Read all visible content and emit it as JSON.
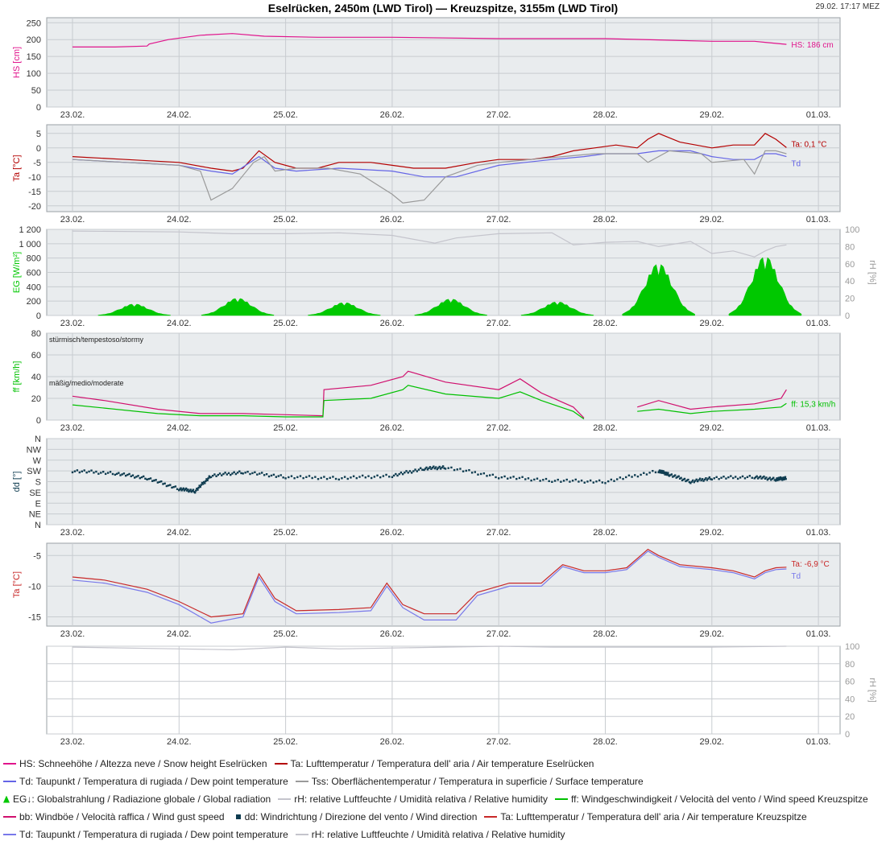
{
  "header": {
    "title": "Eselrücken, 2450m (LWD Tirol) — Kreuzspitze, 3155m (LWD Tirol)",
    "timestamp": "29.02. 17:17 MEZ"
  },
  "colors": {
    "hs": "#e0148c",
    "ta": "#b40000",
    "td": "#6464e6",
    "tss": "#9a9a9a",
    "eg": "#00c800",
    "rh": "#c4c4cc",
    "ff": "#00c000",
    "bb": "#d0106e",
    "dd": "#0f3c50",
    "ta2": "#c82828",
    "td2": "#7878ea",
    "panel": "#e9ecee",
    "grid": "#c8ccd0"
  },
  "chart_data": [
    {
      "id": "hs",
      "type": "line",
      "ylabel": "HS [cm]",
      "yticks": [
        "0",
        "50",
        "100",
        "150",
        "200",
        "250"
      ],
      "ylim": [
        0,
        265
      ],
      "x_tick_labels": [
        "23.02.",
        "24.02.",
        "25.02.",
        "26.02.",
        "27.02.",
        "28.02.",
        "29.02.",
        "01.03."
      ],
      "annotation": "HS: 186 cm",
      "series": [
        {
          "key": "hs",
          "x": [
            0.0,
            0.4,
            0.7,
            0.72,
            0.9,
            1.2,
            1.5,
            1.8,
            2.3,
            3.0,
            4.0,
            5.0,
            5.5,
            6.0,
            6.4,
            6.5,
            6.7
          ],
          "y": [
            178,
            178,
            181,
            187,
            200,
            213,
            218,
            210,
            207,
            207,
            203,
            203,
            199,
            195,
            195,
            192,
            186
          ]
        }
      ]
    },
    {
      "id": "ta",
      "type": "line",
      "ylabel": "Ta [°C]",
      "yticks": [
        "-20",
        "-15",
        "-10",
        "-5",
        "0",
        "5"
      ],
      "ylim": [
        -22,
        8
      ],
      "x_tick_labels": [
        "23.02.",
        "24.02.",
        "25.02.",
        "26.02.",
        "27.02.",
        "28.02.",
        "29.02.",
        "01.03."
      ],
      "annotations": [
        "Ta: 0,1 °C",
        "Td"
      ],
      "series": [
        {
          "key": "ta",
          "x": [
            0,
            0.5,
            1.0,
            1.3,
            1.5,
            1.6,
            1.75,
            1.9,
            2.1,
            2.3,
            2.5,
            2.8,
            3.0,
            3.2,
            3.5,
            3.8,
            4.0,
            4.3,
            4.5,
            4.7,
            4.9,
            5.1,
            5.3,
            5.4,
            5.5,
            5.7,
            6.0,
            6.2,
            6.4,
            6.5,
            6.6,
            6.7
          ],
          "y": [
            -3,
            -4,
            -5,
            -7,
            -8,
            -7,
            -1,
            -5,
            -7,
            -7,
            -5,
            -5,
            -6,
            -7,
            -7,
            -5,
            -4,
            -4,
            -3,
            -1,
            0,
            1,
            0,
            3,
            5,
            2,
            0,
            1,
            1,
            5,
            3,
            0.1
          ]
        },
        {
          "key": "td",
          "x": [
            0,
            0.5,
            1.0,
            1.3,
            1.5,
            1.75,
            1.9,
            2.1,
            2.5,
            3.0,
            3.3,
            3.6,
            4.0,
            4.5,
            4.8,
            5.0,
            5.3,
            5.5,
            5.8,
            6.0,
            6.2,
            6.4,
            6.5,
            6.6,
            6.7
          ],
          "y": [
            -4,
            -5,
            -6,
            -8,
            -9,
            -3,
            -7,
            -8,
            -7,
            -8,
            -10,
            -10,
            -6,
            -4,
            -3,
            -2,
            -2,
            -1,
            -1,
            -3,
            -4,
            -4,
            -2,
            -2,
            -3
          ]
        },
        {
          "key": "tss",
          "x": [
            0,
            0.5,
            1.0,
            1.2,
            1.3,
            1.5,
            1.7,
            1.8,
            1.9,
            2.1,
            2.4,
            2.7,
            3.0,
            3.1,
            3.3,
            3.5,
            3.8,
            4.0,
            4.3,
            4.6,
            4.9,
            5.0,
            5.3,
            5.4,
            5.6,
            5.9,
            6.0,
            6.3,
            6.4,
            6.5,
            6.6,
            6.7
          ],
          "y": [
            -4,
            -5,
            -6,
            -8,
            -18,
            -14,
            -5,
            -3,
            -8,
            -7,
            -7,
            -9,
            -16,
            -19,
            -18,
            -10,
            -6,
            -5,
            -4,
            -3,
            -2,
            -2,
            -2,
            -5,
            -1,
            -2,
            -5,
            -4,
            -9,
            -1,
            -1,
            -2
          ]
        }
      ]
    },
    {
      "id": "eg",
      "type": "area",
      "ylabel": "EG [W/m²]",
      "y2label": "rH [%]",
      "yticks": [
        "0",
        "200",
        "400",
        "600",
        "800",
        "1 000",
        "1 200"
      ],
      "ylim": [
        0,
        1200
      ],
      "y2ticks": [
        "0",
        "20",
        "40",
        "60",
        "80",
        "100"
      ],
      "y2lim": [
        0,
        100
      ],
      "x_tick_labels": [
        "23.02.",
        "24.02.",
        "25.02.",
        "26.02.",
        "27.02.",
        "28.02.",
        "29.02.",
        "01.03."
      ],
      "eg_peaks": [
        {
          "center": 0.58,
          "peak": 160
        },
        {
          "center": 1.55,
          "peak": 240
        },
        {
          "center": 2.55,
          "peak": 180
        },
        {
          "center": 3.55,
          "peak": 230
        },
        {
          "center": 4.55,
          "peak": 190
        },
        {
          "center": 5.5,
          "peak": 720
        },
        {
          "center": 6.5,
          "peak": 820
        }
      ],
      "series": [
        {
          "key": "rh",
          "x": [
            0,
            1.0,
            1.5,
            2.0,
            2.5,
            3.0,
            3.4,
            3.6,
            4.0,
            4.5,
            4.7,
            5.0,
            5.3,
            5.5,
            5.8,
            6.0,
            6.2,
            6.4,
            6.5,
            6.6,
            6.7
          ],
          "y": [
            98,
            97,
            95,
            95,
            96,
            93,
            84,
            90,
            95,
            96,
            82,
            85,
            86,
            80,
            86,
            72,
            75,
            68,
            75,
            80,
            82
          ]
        }
      ]
    },
    {
      "id": "ff",
      "type": "line",
      "ylabel": "ff [km/h]",
      "yticks": [
        "0",
        "20",
        "40",
        "60",
        "80"
      ],
      "ylim": [
        0,
        80
      ],
      "x_tick_labels": [
        "23.02.",
        "24.02.",
        "25.02.",
        "26.02.",
        "27.02.",
        "28.02.",
        "29.02.",
        "01.03."
      ],
      "band_labels": [
        "stürmisch/tempestoso/stormy",
        "mäßig/medio/moderate"
      ],
      "band_values": [
        75,
        35
      ],
      "annotation": "ff: 15,3 km/h",
      "series": [
        {
          "key": "bb",
          "x": [
            0,
            0.3,
            0.8,
            1.2,
            1.6,
            2.0,
            2.35,
            2.36,
            2.8,
            3.1,
            3.15,
            3.5,
            4.0,
            4.2,
            4.4,
            4.7,
            4.8,
            4.85,
            5.3,
            5.5,
            5.8,
            6.0,
            6.4,
            6.65,
            6.7
          ],
          "y": [
            22,
            18,
            10,
            6,
            6,
            5,
            4,
            28,
            32,
            40,
            45,
            35,
            28,
            38,
            25,
            12,
            2,
            null,
            12,
            18,
            10,
            12,
            15,
            20,
            28
          ]
        },
        {
          "key": "ff",
          "x": [
            0,
            0.3,
            0.8,
            1.2,
            1.6,
            2.0,
            2.35,
            2.36,
            2.8,
            3.1,
            3.15,
            3.5,
            4.0,
            4.2,
            4.4,
            4.7,
            4.8,
            4.85,
            5.3,
            5.5,
            5.8,
            6.0,
            6.4,
            6.65,
            6.7
          ],
          "y": [
            14,
            11,
            6,
            4,
            4,
            3,
            3,
            18,
            20,
            28,
            32,
            24,
            20,
            26,
            18,
            8,
            1,
            null,
            8,
            10,
            6,
            8,
            10,
            12,
            15.3
          ]
        }
      ]
    },
    {
      "id": "dd",
      "type": "scatter",
      "ylabel": "dd [°]",
      "yticks": [
        "N",
        "NE",
        "E",
        "SE",
        "S",
        "SW",
        "W",
        "NW",
        "N"
      ],
      "ylim": [
        0,
        360
      ],
      "x_tick_labels": [
        "23.02.",
        "24.02.",
        "25.02.",
        "26.02.",
        "27.02.",
        "28.02.",
        "29.02.",
        "01.03."
      ],
      "series": [
        {
          "key": "dd",
          "x": [
            0,
            0.4,
            0.7,
            1.0,
            1.15,
            1.3,
            1.6,
            2.0,
            2.5,
            3.0,
            3.3,
            3.5,
            4.0,
            4.5,
            5.0,
            5.5,
            5.6,
            5.8,
            6.0,
            6.4,
            6.6,
            6.7
          ],
          "y": [
            225,
            215,
            195,
            150,
            140,
            205,
            220,
            200,
            195,
            205,
            235,
            240,
            200,
            185,
            180,
            225,
            210,
            180,
            195,
            200,
            190,
            195
          ]
        }
      ]
    },
    {
      "id": "ta2",
      "type": "line",
      "ylabel": "Ta [°C]",
      "yticks": [
        "-15",
        "-10",
        "-5"
      ],
      "ylim": [
        -16.5,
        -3
      ],
      "x_tick_labels": [
        "23.02.",
        "24.02.",
        "25.02.",
        "26.02.",
        "27.02.",
        "28.02.",
        "29.02.",
        "01.03."
      ],
      "annotations": [
        "Ta: -6,9 °C",
        "Td"
      ],
      "series": [
        {
          "key": "ta2",
          "x": [
            0,
            0.3,
            0.7,
            1.0,
            1.3,
            1.6,
            1.75,
            1.9,
            2.1,
            2.5,
            2.8,
            2.95,
            3.1,
            3.3,
            3.6,
            3.8,
            4.1,
            4.4,
            4.6,
            4.8,
            5.0,
            5.2,
            5.4,
            5.5,
            5.7,
            6.0,
            6.2,
            6.4,
            6.5,
            6.6,
            6.7
          ],
          "y": [
            -8.5,
            -9,
            -10.5,
            -12.5,
            -15,
            -14.5,
            -8,
            -12,
            -14,
            -13.8,
            -13.5,
            -9.5,
            -13,
            -14.5,
            -14.5,
            -11,
            -9.5,
            -9.5,
            -6.5,
            -7.5,
            -7.5,
            -7,
            -4,
            -5,
            -6.5,
            -7,
            -7.5,
            -8.5,
            -7.5,
            -7,
            -6.9
          ]
        },
        {
          "key": "td2",
          "x": [
            0,
            0.3,
            0.7,
            1.0,
            1.3,
            1.6,
            1.75,
            1.9,
            2.1,
            2.5,
            2.8,
            2.95,
            3.1,
            3.3,
            3.6,
            3.8,
            4.1,
            4.4,
            4.6,
            4.8,
            5.0,
            5.2,
            5.4,
            5.5,
            5.7,
            6.0,
            6.2,
            6.4,
            6.5,
            6.6,
            6.7
          ],
          "y": [
            -9,
            -9.5,
            -11,
            -13,
            -16,
            -15,
            -8.5,
            -12.5,
            -14.5,
            -14.3,
            -14,
            -10,
            -13.5,
            -15.5,
            -15.5,
            -11.5,
            -10,
            -10,
            -6.8,
            -7.8,
            -7.8,
            -7.3,
            -4.3,
            -5.3,
            -6.8,
            -7.3,
            -7.8,
            -8.8,
            -7.8,
            -7.3,
            -7.2
          ]
        }
      ]
    },
    {
      "id": "rh2",
      "type": "line",
      "ylabel": "",
      "y2label": "rH [%]",
      "y2ticks": [
        "0",
        "20",
        "40",
        "60",
        "80",
        "100"
      ],
      "y2lim": [
        0,
        100
      ],
      "x_tick_labels": [
        "23.02.",
        "24.02.",
        "25.02.",
        "26.02.",
        "27.02.",
        "28.02.",
        "29.02.",
        "01.03."
      ],
      "series": [
        {
          "key": "rh",
          "x": [
            0,
            1.0,
            1.5,
            2.0,
            2.5,
            3.0,
            3.5,
            4.0,
            4.5,
            5.0,
            5.5,
            6.0,
            6.7
          ],
          "y": [
            99,
            97,
            96,
            99,
            97,
            98,
            99,
            100,
            99,
            99,
            99,
            99,
            100
          ]
        }
      ]
    }
  ],
  "legend": {
    "rows": [
      [
        {
          "swatch": "line",
          "color": "hs",
          "label": "HS: Schneehöhe / Altezza neve / Snow height  Eselrücken"
        },
        {
          "swatch": "line",
          "color": "ta",
          "label": "Ta: Lufttemperatur / Temperatura dell' aria / Air temperature  Eselrücken"
        }
      ],
      [
        {
          "swatch": "line",
          "color": "td",
          "label": "Td: Taupunkt / Temperatura di rugiada / Dew point temperature"
        },
        {
          "swatch": "line",
          "color": "tss",
          "label": "Tss: Oberflächentemperatur / Temperatura in superficie / Surface temperature"
        }
      ],
      [
        {
          "swatch": "area",
          "color": "eg",
          "label": "EG↓: Globalstrahlung / Radiazione globale / Global radiation"
        },
        {
          "swatch": "line",
          "color": "rh",
          "label": "rH: relative Luftfeuchte / Umidità relativa / Relative humidity"
        },
        {
          "swatch": "line",
          "color": "ff",
          "label": "ff: Windgeschwindigkeit / Velocità del vento / Wind speed  Kreuzspitze"
        }
      ],
      [
        {
          "swatch": "line",
          "color": "bb",
          "label": "bb: Windböe / Velocità raffica / Wind gust speed"
        },
        {
          "swatch": "dot",
          "color": "dd",
          "label": "dd: Windrichtung / Direzione del vento / Wind direction"
        },
        {
          "swatch": "line",
          "color": "ta2",
          "label": "Ta: Lufttemperatur / Temperatura dell' aria / Air temperature  Kreuzspitze"
        }
      ],
      [
        {
          "swatch": "line",
          "color": "td2",
          "label": "Td: Taupunkt / Temperatura di rugiada / Dew point temperature"
        },
        {
          "swatch": "line",
          "color": "rh",
          "label": "rH: relative Luftfeuchte / Umidità relativa / Relative humidity"
        }
      ]
    ]
  }
}
